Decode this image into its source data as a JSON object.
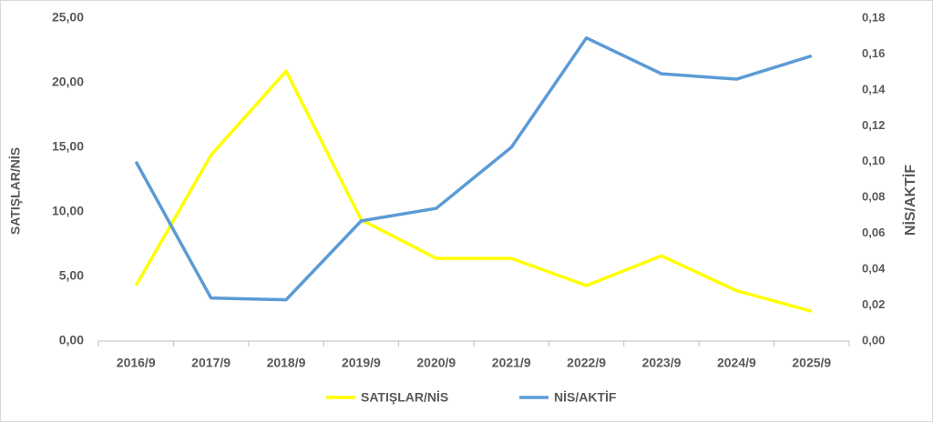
{
  "chart_data": {
    "type": "line",
    "categories": [
      "2016/9",
      "2017/9",
      "2018/9",
      "2019/9",
      "2020/9",
      "2021/9",
      "2022/9",
      "2023/9",
      "2024/9",
      "2025/9"
    ],
    "series": [
      {
        "name": "SATIŞLAR/NİS",
        "color": "#ffff00",
        "axis": "y",
        "values": [
          4.3,
          14.4,
          20.9,
          9.4,
          6.4,
          6.4,
          4.3,
          6.6,
          3.9,
          2.3
        ]
      },
      {
        "name": "NİS/AKTİF",
        "color": "#5b9bd5",
        "axis": "y2",
        "values": [
          0.1,
          0.024,
          0.023,
          0.067,
          0.074,
          0.108,
          0.169,
          0.149,
          0.146,
          0.159
        ]
      }
    ],
    "y_label": "SATIŞLAR/NİS",
    "y2_label": "NİS/AKTİF",
    "ylim": [
      0,
      25
    ],
    "yticks": [
      {
        "value": 0,
        "label": "0,00"
      },
      {
        "value": 5,
        "label": "5,00"
      },
      {
        "value": 10,
        "label": "10,00"
      },
      {
        "value": 15,
        "label": "15,00"
      },
      {
        "value": 20,
        "label": "20,00"
      },
      {
        "value": 25,
        "label": "25,00"
      }
    ],
    "y2lim": [
      0,
      0.18
    ],
    "y2ticks": [
      {
        "value": 0,
        "label": "0,00"
      },
      {
        "value": 0.02,
        "label": "0,02"
      },
      {
        "value": 0.04,
        "label": "0,04"
      },
      {
        "value": 0.06,
        "label": "0,06"
      },
      {
        "value": 0.08,
        "label": "0,08"
      },
      {
        "value": 0.1,
        "label": "0,10"
      },
      {
        "value": 0.12,
        "label": "0,12"
      },
      {
        "value": 0.14,
        "label": "0,14"
      },
      {
        "value": 0.16,
        "label": "0,16"
      },
      {
        "value": 0.18,
        "label": "0,18"
      }
    ],
    "grid": false,
    "legend": "bottom"
  }
}
